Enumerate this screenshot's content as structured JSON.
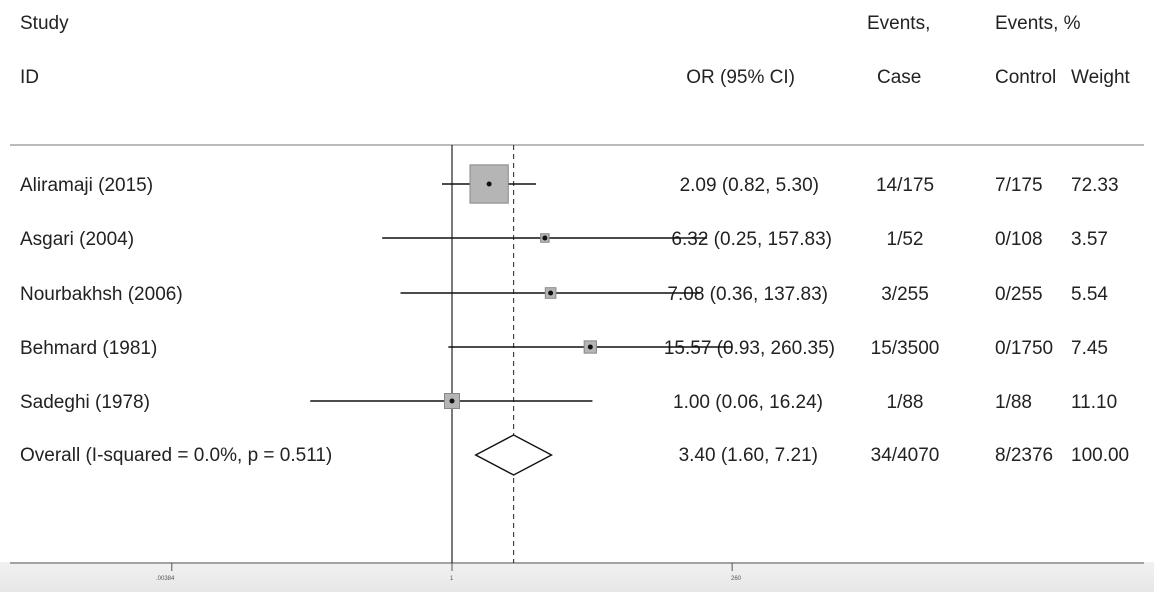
{
  "headers": {
    "study": "Study",
    "id": "ID",
    "or": "OR (95% CI)",
    "events_case_top": "Events,",
    "events_case_bottom": "Case",
    "events_control_top": "Events, %",
    "control": "Control",
    "weight": "Weight"
  },
  "rows": [
    {
      "study": "Aliramaji (2015)",
      "or_text": "2.09 (0.82, 5.30)",
      "case": "14/175",
      "control": "7/175",
      "weight": "72.33"
    },
    {
      "study": "Asgari (2004)",
      "or_text": "6.32 (0.25, 157.83)",
      "case": "1/52",
      "control": "0/108",
      "weight": "3.57"
    },
    {
      "study": "Nourbakhsh (2006)",
      "or_text": "7.08 (0.36, 137.83)",
      "case": "3/255",
      "control": "0/255",
      "weight": "5.54"
    },
    {
      "study": "Behmard (1981)",
      "or_text": "15.57 (0.93, 260.35)",
      "case": "15/3500",
      "control": "0/1750",
      "weight": "7.45"
    },
    {
      "study": "Sadeghi (1978)",
      "or_text": "1.00 (0.06, 16.24)",
      "case": "1/88",
      "control": "1/88",
      "weight": "11.10"
    }
  ],
  "overall": {
    "label": "Overall  (I-squared = 0.0%, p = 0.511)",
    "or_text": "3.40 (1.60, 7.21)",
    "case": "34/4070",
    "control": "8/2376",
    "weight": "100.00"
  },
  "chart_data": {
    "type": "scatter",
    "scale": "log",
    "null_line": 1,
    "pooled_line": 3.4,
    "x_ticks": [
      ".00384",
      "1",
      "260"
    ],
    "x_tick_values": [
      0.00384,
      1,
      260
    ],
    "studies": [
      {
        "name": "Aliramaji (2015)",
        "or": 2.09,
        "lo": 0.82,
        "hi": 5.3,
        "weight": 72.33
      },
      {
        "name": "Asgari (2004)",
        "or": 6.32,
        "lo": 0.25,
        "hi": 157.83,
        "weight": 3.57
      },
      {
        "name": "Nourbakhsh (2006)",
        "or": 7.08,
        "lo": 0.36,
        "hi": 137.83,
        "weight": 5.54
      },
      {
        "name": "Behmard (1981)",
        "or": 15.57,
        "lo": 0.93,
        "hi": 260.35,
        "weight": 7.45
      },
      {
        "name": "Sadeghi (1978)",
        "or": 1.0,
        "lo": 0.06,
        "hi": 16.24,
        "weight": 11.1
      }
    ],
    "overall": {
      "or": 3.4,
      "lo": 1.6,
      "hi": 7.21,
      "weight": 100.0
    }
  }
}
